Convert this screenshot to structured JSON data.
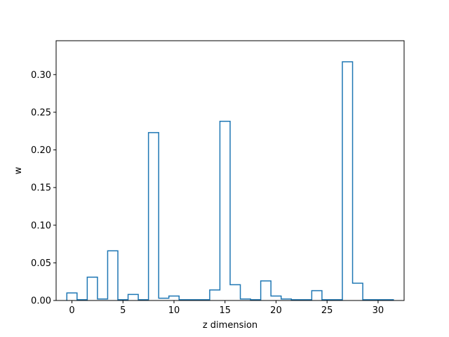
{
  "chart_data": {
    "type": "bar",
    "style": "step-histogram",
    "title": "",
    "xlabel": "z dimension",
    "ylabel": "w",
    "xlim": [
      -1.55,
      32.55
    ],
    "ylim": [
      0,
      0.345
    ],
    "xticks": [
      0,
      5,
      10,
      15,
      20,
      25,
      30
    ],
    "yticks": [
      0.0,
      0.05,
      0.1,
      0.15,
      0.2,
      0.25,
      0.3
    ],
    "ytick_labels": [
      "0.00",
      "0.05",
      "0.10",
      "0.15",
      "0.20",
      "0.25",
      "0.30"
    ],
    "grid": false,
    "line_color": "#1f77b4",
    "x": [
      0,
      1,
      2,
      3,
      4,
      5,
      6,
      7,
      8,
      9,
      10,
      11,
      12,
      13,
      14,
      15,
      16,
      17,
      18,
      19,
      20,
      21,
      22,
      23,
      24,
      25,
      26,
      27,
      28,
      29,
      30,
      31
    ],
    "values": [
      0.01,
      0.001,
      0.031,
      0.002,
      0.066,
      0.001,
      0.008,
      0.001,
      0.223,
      0.003,
      0.006,
      0.001,
      0.001,
      0.001,
      0.014,
      0.238,
      0.021,
      0.002,
      0.001,
      0.026,
      0.006,
      0.002,
      0.001,
      0.001,
      0.013,
      0.001,
      0.001,
      0.317,
      0.023,
      0.001,
      0.001,
      0.001
    ]
  }
}
